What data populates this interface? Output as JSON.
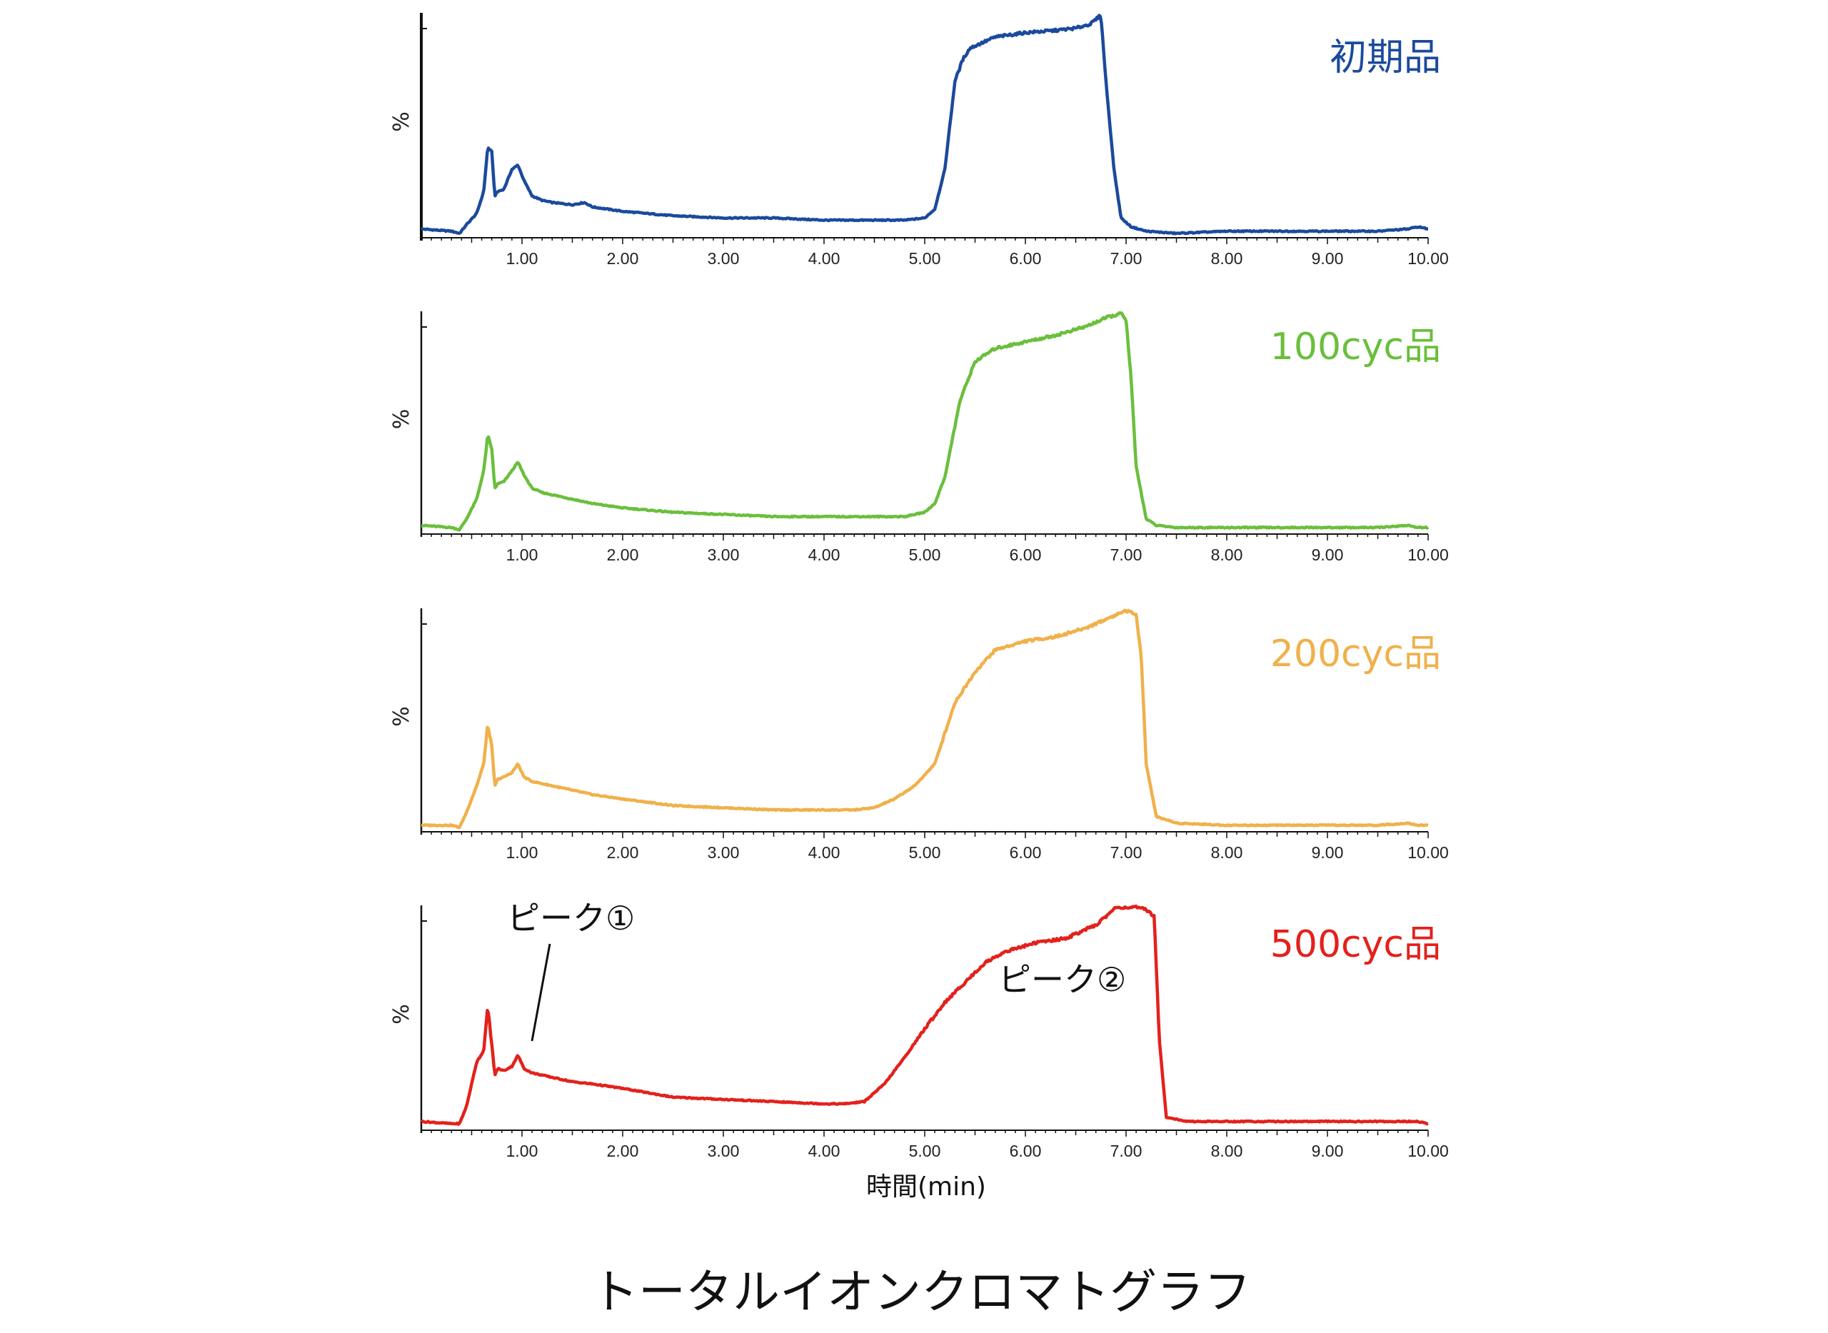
{
  "chart_data": [
    {
      "type": "line",
      "series_name": "初期品",
      "color": "#1b4a9c",
      "ylabel": "%",
      "xlim": [
        0,
        10
      ],
      "tick_labels": [
        "1.00",
        "2.00",
        "3.00",
        "4.00",
        "5.00",
        "6.00",
        "7.00",
        "8.00",
        "9.00",
        "10.00"
      ],
      "x": [
        0.0,
        0.3,
        0.38,
        0.45,
        0.55,
        0.62,
        0.66,
        0.7,
        0.73,
        0.76,
        0.82,
        0.9,
        0.96,
        1.02,
        1.1,
        1.2,
        1.3,
        1.5,
        1.62,
        1.7,
        2.0,
        2.5,
        3.0,
        3.5,
        4.0,
        4.5,
        4.8,
        5.0,
        5.1,
        5.2,
        5.3,
        5.38,
        5.45,
        5.55,
        5.7,
        6.0,
        6.3,
        6.5,
        6.65,
        6.75,
        6.8,
        6.88,
        6.95,
        7.05,
        7.2,
        7.5,
        8.0,
        8.5,
        9.0,
        9.5,
        9.8,
        9.9,
        10.0
      ],
      "y": [
        3,
        2,
        1,
        5,
        10,
        20,
        40,
        38,
        18,
        20,
        21,
        30,
        32,
        25,
        18,
        16,
        15,
        14,
        15,
        13,
        11,
        9,
        8,
        8,
        7,
        7,
        7,
        8,
        12,
        30,
        70,
        80,
        85,
        87,
        90,
        92,
        93,
        94,
        96,
        100,
        70,
        30,
        8,
        4,
        2,
        1,
        2,
        2,
        2,
        2,
        3,
        4,
        3
      ]
    },
    {
      "type": "line",
      "series_name": "100cyc品",
      "color": "#6abf3c",
      "ylabel": "%",
      "xlim": [
        0,
        10
      ],
      "tick_labels": [
        "1.00",
        "2.00",
        "3.00",
        "4.00",
        "5.00",
        "6.00",
        "7.00",
        "8.00",
        "9.00",
        "10.00"
      ],
      "x": [
        0.0,
        0.3,
        0.38,
        0.45,
        0.55,
        0.62,
        0.66,
        0.7,
        0.73,
        0.76,
        0.82,
        0.9,
        0.96,
        1.02,
        1.1,
        1.2,
        1.5,
        1.7,
        2.0,
        2.5,
        3.0,
        3.5,
        4.0,
        4.5,
        4.8,
        5.0,
        5.1,
        5.2,
        5.35,
        5.5,
        5.7,
        6.0,
        6.3,
        6.6,
        6.8,
        6.95,
        7.0,
        7.05,
        7.1,
        7.2,
        7.3,
        7.5,
        8.0,
        8.5,
        9.0,
        9.5,
        9.8,
        9.9,
        10.0
      ],
      "y": [
        3,
        2,
        1,
        6,
        15,
        28,
        44,
        38,
        20,
        22,
        23,
        28,
        32,
        26,
        20,
        18,
        15,
        13,
        11,
        9,
        8,
        7,
        7,
        7,
        7,
        9,
        13,
        25,
        60,
        78,
        84,
        87,
        90,
        94,
        98,
        100,
        97,
        70,
        30,
        6,
        3,
        2,
        2,
        2,
        2,
        2,
        3,
        2,
        2
      ]
    },
    {
      "type": "line",
      "series_name": "200cyc品",
      "color": "#f0b04a",
      "ylabel": "%",
      "xlim": [
        0,
        10
      ],
      "tick_labels": [
        "1.00",
        "2.00",
        "3.00",
        "4.00",
        "5.00",
        "6.00",
        "7.00",
        "8.00",
        "9.00",
        "10.00"
      ],
      "x": [
        0.0,
        0.3,
        0.38,
        0.45,
        0.55,
        0.62,
        0.66,
        0.7,
        0.73,
        0.76,
        0.82,
        0.9,
        0.96,
        1.02,
        1.1,
        1.2,
        1.5,
        1.7,
        2.0,
        2.5,
        3.0,
        3.5,
        4.0,
        4.3,
        4.5,
        4.7,
        4.9,
        5.1,
        5.3,
        5.5,
        5.7,
        6.0,
        6.3,
        6.6,
        6.8,
        7.0,
        7.1,
        7.15,
        7.2,
        7.3,
        7.5,
        8.0,
        8.5,
        9.0,
        9.5,
        9.8,
        9.9,
        10.0
      ],
      "y": [
        2,
        2,
        1,
        8,
        20,
        30,
        48,
        38,
        20,
        23,
        24,
        26,
        30,
        24,
        22,
        21,
        18,
        16,
        14,
        11,
        10,
        9,
        9,
        9,
        10,
        14,
        20,
        30,
        58,
        72,
        82,
        86,
        88,
        92,
        96,
        100,
        98,
        80,
        30,
        6,
        3,
        2,
        2,
        2,
        2,
        3,
        2,
        2
      ]
    },
    {
      "type": "line",
      "series_name": "500cyc品",
      "color": "#e3211c",
      "ylabel": "%",
      "xlim": [
        0,
        10
      ],
      "tick_labels": [
        "1.00",
        "2.00",
        "3.00",
        "4.00",
        "5.00",
        "6.00",
        "7.00",
        "8.00",
        "9.00",
        "10.00"
      ],
      "x": [
        0.0,
        0.3,
        0.38,
        0.45,
        0.55,
        0.62,
        0.66,
        0.7,
        0.73,
        0.76,
        0.82,
        0.9,
        0.96,
        1.02,
        1.1,
        1.2,
        1.5,
        1.7,
        2.0,
        2.5,
        3.0,
        3.5,
        4.0,
        4.2,
        4.4,
        4.6,
        4.8,
        5.0,
        5.2,
        5.4,
        5.6,
        5.8,
        6.1,
        6.4,
        6.7,
        6.9,
        7.1,
        7.2,
        7.28,
        7.33,
        7.4,
        7.6,
        8.0,
        8.5,
        9.0,
        9.5,
        9.8,
        9.9,
        10.0
      ],
      "y": [
        3,
        2,
        2,
        10,
        30,
        35,
        55,
        38,
        24,
        27,
        26,
        28,
        33,
        27,
        25,
        24,
        21,
        20,
        18,
        14,
        13,
        12,
        11,
        11,
        12,
        20,
        32,
        45,
        57,
        66,
        75,
        80,
        84,
        86,
        92,
        100,
        100,
        99,
        96,
        40,
        5,
        3,
        3,
        3,
        3,
        3,
        3,
        3,
        2
      ]
    }
  ],
  "annotations": {
    "peak1": "ピーク①",
    "peak2": "ピーク②"
  },
  "xlabel": "時間(min)",
  "footer_title": "トータルイオンクロマトグラフ"
}
